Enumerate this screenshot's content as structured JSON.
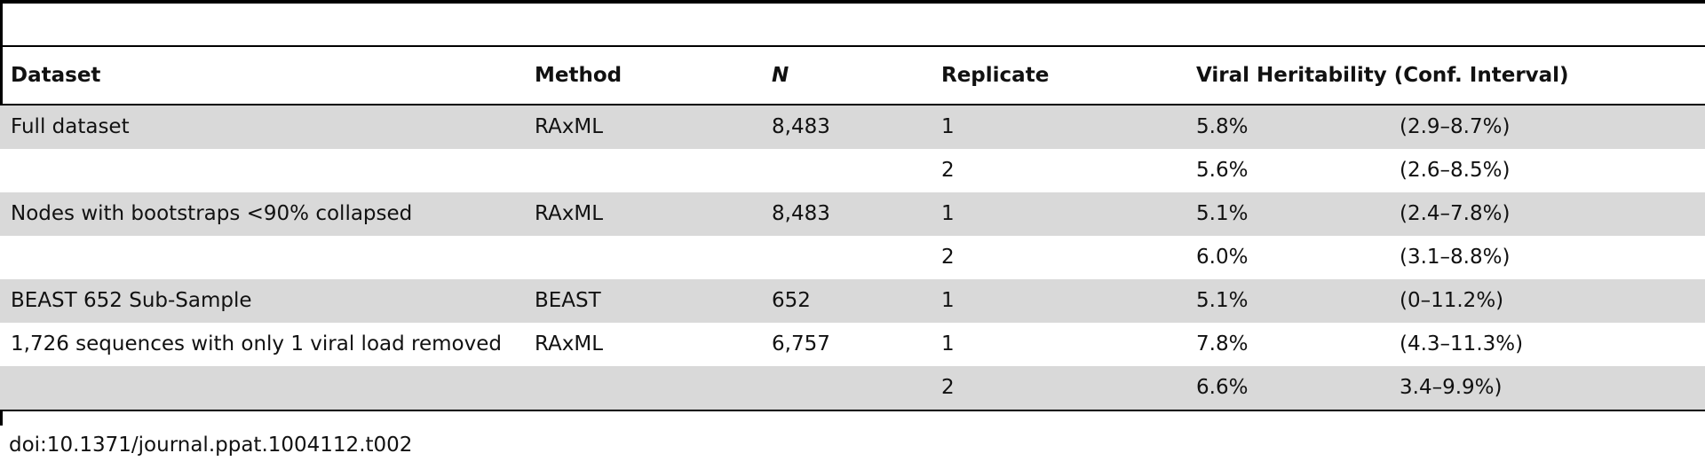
{
  "table": {
    "header": [
      "Dataset",
      "Method",
      "N",
      "Replicate",
      "Viral Heritability (Conf. Interval)"
    ],
    "rows": [
      {
        "dataset": "Full dataset",
        "method": "RAxML",
        "n": "8,483",
        "replicate": "1",
        "heritability": "5.8%",
        "interval": "(2.9–8.7%)"
      },
      {
        "replicate": "2",
        "heritability": "5.6%",
        "interval": "(2.6–8.5%)"
      },
      {
        "dataset": "Nodes with bootstraps <90% collapsed",
        "method": "RAxML",
        "n": "8,483",
        "replicate": "1",
        "heritability": "5.1%",
        "interval": "(2.4–7.8%)"
      },
      {
        "replicate": "2",
        "heritability": "6.0%",
        "interval": "(3.1–8.8%)"
      },
      {
        "dataset": "BEAST 652 Sub-Sample",
        "method": "BEAST",
        "n": "652",
        "replicate": "1",
        "heritability": "5.1%",
        "interval": "(0–11.2%)"
      },
      {
        "dataset": "1,726 sequences with only 1 viral load removed",
        "method": "RAxML",
        "n": "6,757",
        "replicate": "1",
        "heritability": "7.8%",
        "interval": "(4.3–11.3%)"
      },
      {
        "replicate": "2",
        "heritability": "6.6%",
        "interval": "3.4–9.9%)"
      }
    ],
    "footer": "doi:10.1371/journal.ppat.1004112.t002"
  }
}
